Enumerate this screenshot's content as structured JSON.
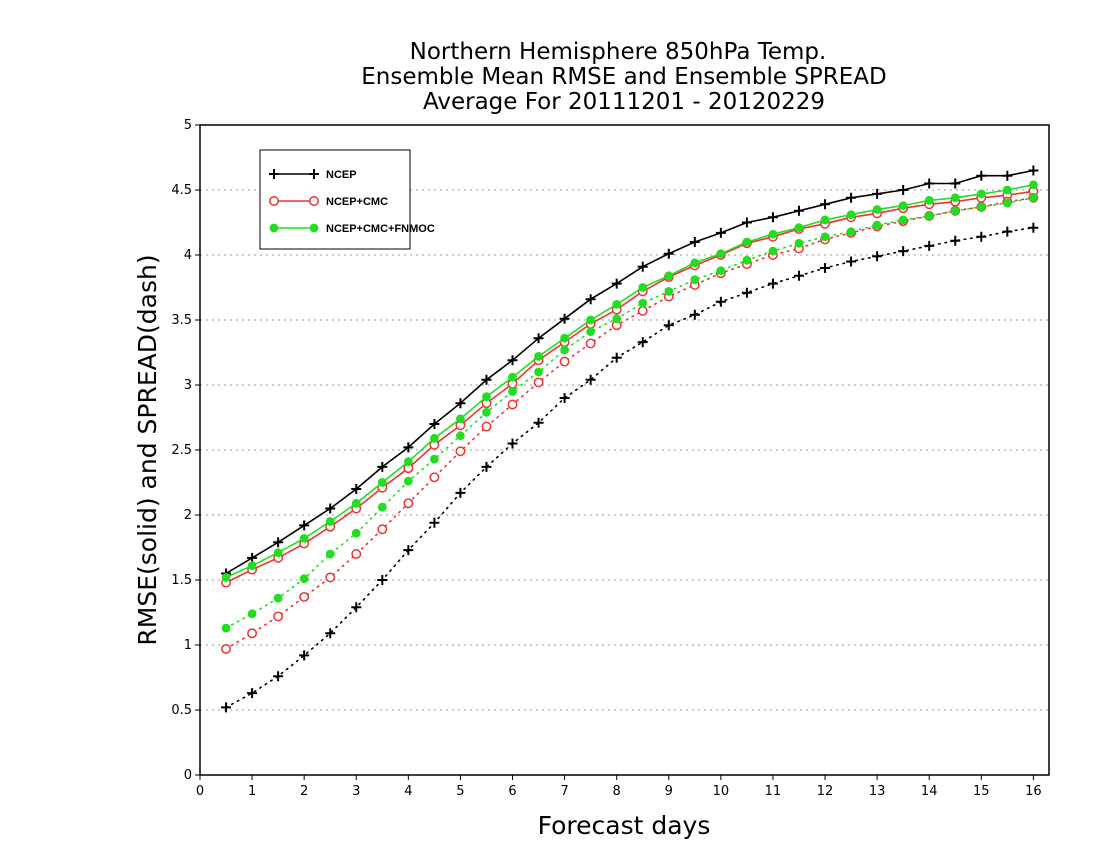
{
  "chart_data": {
    "type": "line",
    "title": [
      "Northern Hemisphere 850hPa Temp.",
      "Ensemble Mean RMSE and Ensemble SPREAD",
      "Average For 20111201 - 20120229"
    ],
    "xlabel": "Forecast days",
    "ylabel": "RMSE(solid) and SPREAD(dash)",
    "xlim": [
      0,
      16.3
    ],
    "ylim": [
      0,
      5
    ],
    "xticks": [
      0,
      1,
      2,
      3,
      4,
      5,
      6,
      7,
      8,
      9,
      10,
      11,
      12,
      13,
      14,
      15,
      16
    ],
    "yticks": [
      0,
      0.5,
      1,
      1.5,
      2,
      2.5,
      3,
      3.5,
      4,
      4.5,
      5
    ],
    "ytick_labels": [
      "0",
      "0.5",
      "1",
      "1.5",
      "2",
      "2.5",
      "3",
      "3.5",
      "4",
      "4.5",
      "5"
    ],
    "grid": "horizontal dotted",
    "legend_position": "top-left",
    "x": [
      0.5,
      1,
      1.5,
      2,
      2.5,
      3,
      3.5,
      4,
      4.5,
      5,
      5.5,
      6,
      6.5,
      7,
      7.5,
      8,
      8.5,
      9,
      9.5,
      10,
      10.5,
      11,
      11.5,
      12,
      12.5,
      13,
      13.5,
      14,
      14.5,
      15,
      15.5,
      16
    ],
    "series": [
      {
        "name": "NCEP",
        "color": "#000000",
        "marker": "plus",
        "rmse": [
          1.55,
          1.67,
          1.79,
          1.92,
          2.05,
          2.2,
          2.37,
          2.52,
          2.7,
          2.86,
          3.04,
          3.19,
          3.36,
          3.51,
          3.66,
          3.78,
          3.91,
          4.01,
          4.1,
          4.17,
          4.25,
          4.29,
          4.34,
          4.39,
          4.44,
          4.47,
          4.5,
          4.55,
          4.55,
          4.61,
          4.61,
          4.65
        ],
        "spread": [
          0.52,
          0.63,
          0.76,
          0.92,
          1.09,
          1.29,
          1.5,
          1.73,
          1.94,
          2.17,
          2.37,
          2.55,
          2.71,
          2.9,
          3.04,
          3.21,
          3.33,
          3.46,
          3.54,
          3.64,
          3.71,
          3.78,
          3.84,
          3.9,
          3.95,
          3.99,
          4.03,
          4.07,
          4.11,
          4.14,
          4.18,
          4.21
        ]
      },
      {
        "name": "NCEP+CMC",
        "color": "#ee3333",
        "marker": "open-circle",
        "rmse": [
          1.48,
          1.58,
          1.67,
          1.78,
          1.91,
          2.05,
          2.21,
          2.36,
          2.54,
          2.69,
          2.86,
          3.01,
          3.19,
          3.33,
          3.47,
          3.58,
          3.72,
          3.83,
          3.92,
          4.0,
          4.09,
          4.14,
          4.2,
          4.24,
          4.29,
          4.32,
          4.36,
          4.39,
          4.41,
          4.44,
          4.46,
          4.49
        ],
        "spread": [
          0.97,
          1.09,
          1.22,
          1.37,
          1.52,
          1.7,
          1.89,
          2.09,
          2.29,
          2.49,
          2.68,
          2.85,
          3.02,
          3.18,
          3.32,
          3.46,
          3.57,
          3.68,
          3.77,
          3.86,
          3.93,
          4.0,
          4.05,
          4.12,
          4.17,
          4.22,
          4.26,
          4.3,
          4.34,
          4.37,
          4.41,
          4.44
        ]
      },
      {
        "name": "NCEP+CMC+FNMOC",
        "color": "#22dd22",
        "marker": "filled-circle",
        "rmse": [
          1.52,
          1.61,
          1.71,
          1.82,
          1.95,
          2.09,
          2.25,
          2.41,
          2.59,
          2.74,
          2.91,
          3.06,
          3.22,
          3.36,
          3.5,
          3.62,
          3.75,
          3.84,
          3.94,
          4.01,
          4.1,
          4.16,
          4.21,
          4.27,
          4.31,
          4.35,
          4.38,
          4.42,
          4.44,
          4.47,
          4.5,
          4.54
        ],
        "spread": [
          1.13,
          1.24,
          1.36,
          1.51,
          1.7,
          1.86,
          2.06,
          2.26,
          2.43,
          2.61,
          2.79,
          2.95,
          3.1,
          3.27,
          3.41,
          3.51,
          3.63,
          3.72,
          3.81,
          3.88,
          3.96,
          4.03,
          4.09,
          4.14,
          4.18,
          4.23,
          4.27,
          4.3,
          4.34,
          4.37,
          4.4,
          4.44
        ]
      }
    ]
  }
}
